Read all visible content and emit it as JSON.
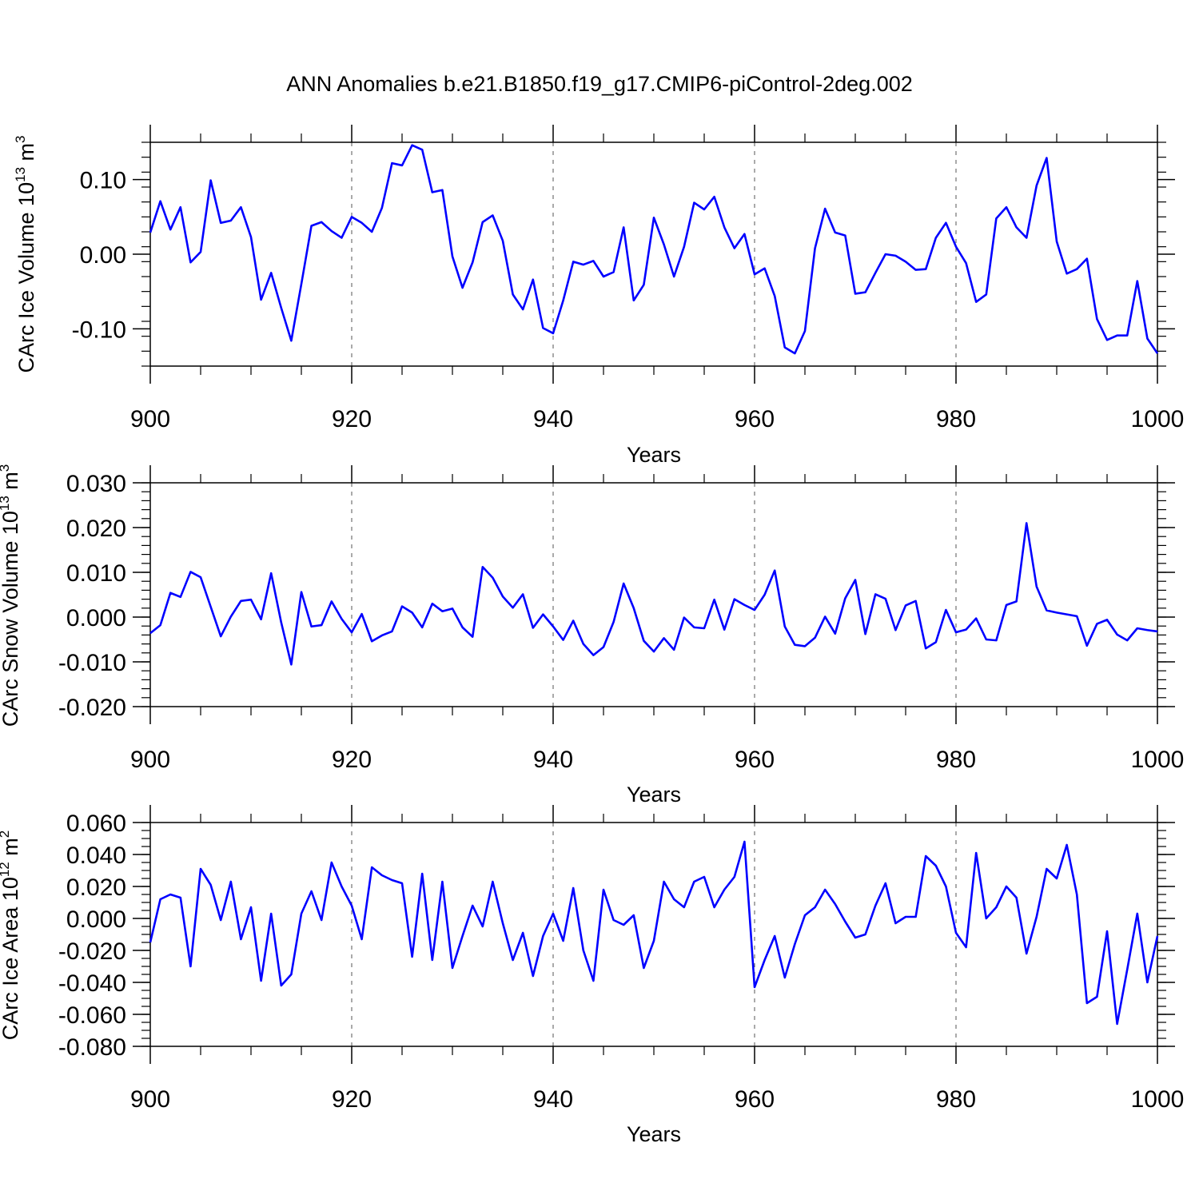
{
  "title": "ANN Anomalies b.e21.B1850.f19_g17.CMIP6-piControl-2deg.002",
  "line_color": "#0000ff",
  "chart_data": [
    {
      "type": "line",
      "xlabel": "Years",
      "ylabel": {
        "text": "CArc Ice Volume 10",
        "exponent": "13",
        "unit": "m",
        "unit_exponent": "3"
      },
      "xlim": [
        900,
        1000
      ],
      "ylim": [
        -0.15,
        0.15
      ],
      "xticks": [
        900,
        920,
        940,
        960,
        980,
        1000
      ],
      "xtick_labels": [
        "900",
        "920",
        "940",
        "960",
        "980",
        "1000"
      ],
      "yticks": [
        -0.1,
        0.0,
        0.1
      ],
      "ytick_labels": [
        "-0.10",
        "0.00",
        "0.10"
      ],
      "yminor_step": 0.02,
      "grid": "dashed vertical",
      "x_start": 900,
      "values": [
        0.029,
        0.071,
        0.033,
        0.063,
        -0.011,
        0.003,
        0.099,
        0.042,
        0.045,
        0.063,
        0.023,
        -0.061,
        -0.025,
        -0.072,
        -0.116,
        -0.04,
        0.038,
        0.043,
        0.031,
        0.022,
        0.05,
        0.042,
        0.03,
        0.062,
        0.122,
        0.119,
        0.146,
        0.14,
        0.083,
        0.086,
        -0.003,
        -0.045,
        -0.011,
        0.043,
        0.052,
        0.018,
        -0.054,
        -0.074,
        -0.034,
        -0.099,
        -0.106,
        -0.062,
        -0.01,
        -0.014,
        -0.009,
        -0.03,
        -0.024,
        0.036,
        -0.062,
        -0.041,
        0.049,
        0.013,
        -0.03,
        0.01,
        0.069,
        0.06,
        0.077,
        0.036,
        0.008,
        0.027,
        -0.027,
        -0.019,
        -0.056,
        -0.125,
        -0.133,
        -0.103,
        0.008,
        0.061,
        0.029,
        0.025,
        -0.053,
        -0.051,
        -0.025,
        0.0,
        -0.002,
        -0.01,
        -0.021,
        -0.02,
        0.022,
        0.042,
        0.01,
        -0.012,
        -0.064,
        -0.054,
        0.048,
        0.063,
        0.036,
        0.022,
        0.092,
        0.129,
        0.017,
        -0.026,
        -0.02,
        -0.006,
        -0.087,
        -0.115,
        -0.109,
        -0.109,
        -0.036,
        -0.113,
        -0.133
      ]
    },
    {
      "type": "line",
      "xlabel": "Years",
      "ylabel": {
        "text": "CArc Snow Volume 10",
        "exponent": "13",
        "unit": "m",
        "unit_exponent": "3"
      },
      "xlim": [
        900,
        1000
      ],
      "ylim": [
        -0.02,
        0.03
      ],
      "xticks": [
        900,
        920,
        940,
        960,
        980,
        1000
      ],
      "xtick_labels": [
        "900",
        "920",
        "940",
        "960",
        "980",
        "1000"
      ],
      "yticks": [
        -0.02,
        -0.01,
        0.0,
        0.01,
        0.02,
        0.03
      ],
      "ytick_labels": [
        "-0.020",
        "-0.010",
        "0.000",
        "0.010",
        "0.020",
        "0.030"
      ],
      "yminor_step": 0.002,
      "grid": "dashed vertical",
      "x_start": 900,
      "values": [
        -0.0036,
        -0.0018,
        0.0054,
        0.0045,
        0.0101,
        0.0089,
        0.0023,
        -0.0043,
        0.0001,
        0.0036,
        0.0039,
        -0.0005,
        0.0098,
        -0.0012,
        -0.0106,
        0.0056,
        -0.0021,
        -0.0018,
        0.0035,
        -0.0004,
        -0.0034,
        0.0007,
        -0.0054,
        -0.0041,
        -0.0032,
        0.0024,
        0.001,
        -0.0023,
        0.003,
        0.0013,
        0.0019,
        -0.0023,
        -0.0044,
        0.0112,
        0.0088,
        0.0046,
        0.0021,
        0.0051,
        -0.0024,
        0.0006,
        -0.0021,
        -0.0051,
        -0.0008,
        -0.006,
        -0.0085,
        -0.0067,
        -0.0011,
        0.0075,
        0.002,
        -0.0053,
        -0.0077,
        -0.0047,
        -0.0073,
        -0.0001,
        -0.0023,
        -0.0025,
        0.0039,
        -0.0028,
        0.004,
        0.0027,
        0.0016,
        0.005,
        0.0104,
        -0.0021,
        -0.0062,
        -0.0065,
        -0.0046,
        0.0001,
        -0.0037,
        0.0042,
        0.0083,
        -0.0038,
        0.0051,
        0.0041,
        -0.0029,
        0.0026,
        0.0036,
        -0.007,
        -0.0056,
        0.0016,
        -0.0034,
        -0.0028,
        -0.0003,
        -0.005,
        -0.0052,
        0.0027,
        0.0035,
        0.021,
        0.0068,
        0.0015,
        0.001,
        0.0006,
        0.0002,
        -0.0064,
        -0.0015,
        -0.0006,
        -0.0039,
        -0.0052,
        -0.0025,
        -0.0029,
        -0.0032
      ]
    },
    {
      "type": "line",
      "xlabel": "Years",
      "ylabel": {
        "text": "CArc Ice Area 10",
        "exponent": "12",
        "unit": "m",
        "unit_exponent": "2"
      },
      "xlim": [
        900,
        1000
      ],
      "ylim": [
        -0.08,
        0.06
      ],
      "xticks": [
        900,
        920,
        940,
        960,
        980,
        1000
      ],
      "xtick_labels": [
        "900",
        "920",
        "940",
        "960",
        "980",
        "1000"
      ],
      "yticks": [
        -0.08,
        -0.06,
        -0.04,
        -0.02,
        0.0,
        0.02,
        0.04,
        0.06
      ],
      "ytick_labels": [
        "-0.080",
        "-0.060",
        "-0.040",
        "-0.020",
        "0.000",
        "0.020",
        "0.040",
        "0.060"
      ],
      "yminor_step": 0.005,
      "grid": "dashed vertical",
      "x_start": 900,
      "values": [
        -0.015,
        0.012,
        0.015,
        0.013,
        -0.03,
        0.031,
        0.021,
        -0.001,
        0.023,
        -0.013,
        0.007,
        -0.039,
        0.003,
        -0.042,
        -0.035,
        0.003,
        0.017,
        -0.001,
        0.035,
        0.02,
        0.008,
        -0.013,
        0.032,
        0.027,
        0.024,
        0.022,
        -0.024,
        0.028,
        -0.026,
        0.023,
        -0.031,
        -0.011,
        0.008,
        -0.005,
        0.023,
        -0.003,
        -0.026,
        -0.009,
        -0.036,
        -0.011,
        0.003,
        -0.014,
        0.019,
        -0.02,
        -0.039,
        0.018,
        -0.001,
        -0.004,
        0.002,
        -0.031,
        -0.014,
        0.023,
        0.012,
        0.007,
        0.023,
        0.026,
        0.007,
        0.018,
        0.026,
        0.048,
        -0.043,
        -0.026,
        -0.011,
        -0.037,
        -0.016,
        0.002,
        0.007,
        0.018,
        0.009,
        -0.002,
        -0.012,
        -0.01,
        0.008,
        0.022,
        -0.003,
        0.001,
        0.001,
        0.039,
        0.033,
        0.02,
        -0.009,
        -0.018,
        0.041,
        0.0,
        0.007,
        0.02,
        0.013,
        -0.022,
        0.001,
        0.031,
        0.025,
        0.046,
        0.015,
        -0.053,
        -0.049,
        -0.008,
        -0.066,
        -0.032,
        0.003,
        -0.04,
        -0.011
      ]
    }
  ]
}
